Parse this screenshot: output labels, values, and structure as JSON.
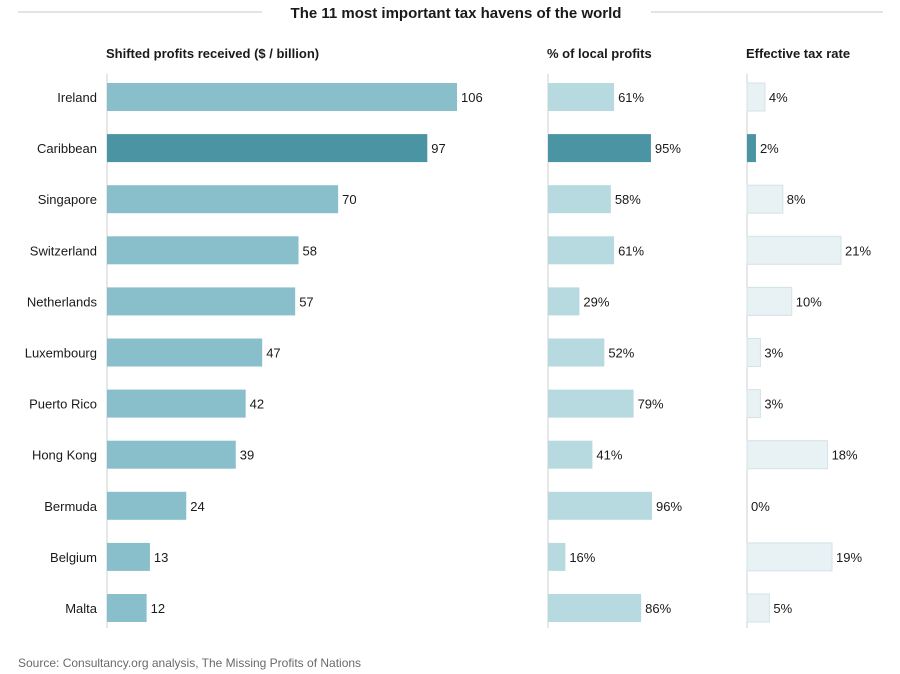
{
  "chart_data": {
    "type": "bar",
    "title": "The 11 most important tax havens of the world",
    "categories": [
      "Ireland",
      "Caribbean",
      "Singapore",
      "Switzerland",
      "Netherlands",
      "Luxembourg",
      "Puerto Rico",
      "Hong Kong",
      "Bermuda",
      "Belgium",
      "Malta"
    ],
    "highlight": "Caribbean",
    "panels": [
      {
        "key": "shifted",
        "header": "Shifted profits received ($  / billion)",
        "values": [
          106,
          97,
          70,
          58,
          57,
          47,
          42,
          39,
          24,
          13,
          12
        ],
        "suffix": "",
        "xlim": [
          0,
          106
        ],
        "color": "#88bfca",
        "highlight_color": "#4a94a3"
      },
      {
        "key": "local",
        "header": "% of local profits",
        "values": [
          61,
          95,
          58,
          61,
          29,
          52,
          79,
          41,
          96,
          16,
          86
        ],
        "suffix": "%",
        "xlim": [
          0,
          96
        ],
        "color": "#b7d9e0",
        "highlight_color": "#4a94a3"
      },
      {
        "key": "tax",
        "header": "Effective tax rate",
        "values": [
          4,
          2,
          8,
          21,
          10,
          3,
          3,
          18,
          0,
          19,
          5
        ],
        "suffix": "%",
        "xlim": [
          0,
          21
        ],
        "color": "#e8f1f3",
        "highlight_color": "#4a94a3"
      }
    ]
  },
  "source": "Source: Consultancy.org analysis, The Missing Profits of Nations"
}
